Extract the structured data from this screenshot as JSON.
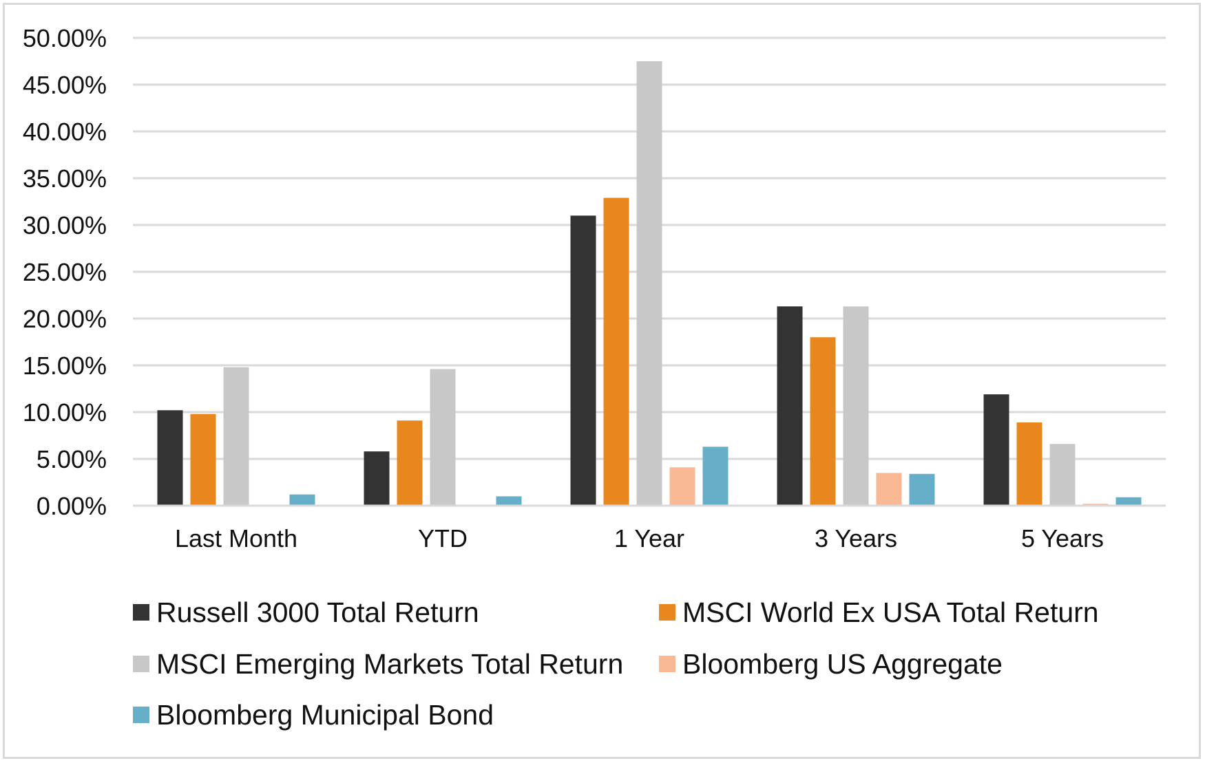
{
  "chart_data": {
    "type": "bar",
    "title": "",
    "xlabel": "",
    "ylabel": "",
    "ylim": [
      0,
      50
    ],
    "y_tick_format": "percent_2dp",
    "y_ticks": [
      "0.00%",
      "5.00%",
      "10.00%",
      "15.00%",
      "20.00%",
      "25.00%",
      "30.00%",
      "35.00%",
      "40.00%",
      "45.00%",
      "50.00%"
    ],
    "grid": true,
    "legend_position": "bottom",
    "categories": [
      "Last Month",
      "YTD",
      "1 Year",
      "3 Years",
      "5 Years"
    ],
    "series": [
      {
        "name": "Russell 3000 Total Return",
        "color": "#333333",
        "values": [
          10.2,
          5.8,
          31.0,
          21.3,
          11.9
        ]
      },
      {
        "name": "MSCI World Ex USA Total Return",
        "color": "#e8871e",
        "values": [
          9.8,
          9.1,
          32.9,
          18.0,
          8.9
        ]
      },
      {
        "name": "MSCI Emerging Markets Total Return",
        "color": "#c8c8c8",
        "values": [
          14.8,
          14.6,
          47.5,
          21.3,
          6.6
        ]
      },
      {
        "name": "Bloomberg US Aggregate",
        "color": "#f9b994",
        "values": [
          0.0,
          0.0,
          4.1,
          3.5,
          0.2
        ]
      },
      {
        "name": "Bloomberg Municipal Bond",
        "color": "#67aec8",
        "values": [
          1.2,
          1.0,
          6.3,
          3.4,
          0.9
        ]
      }
    ]
  }
}
